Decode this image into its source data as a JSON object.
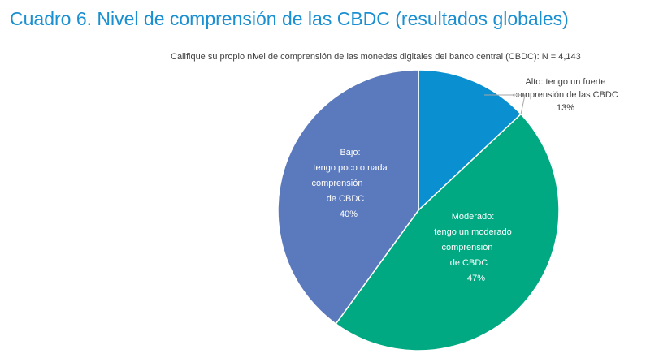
{
  "header": {
    "title": "Cuadro 6. Nivel de comprensión de las CBDC (resultados globales)",
    "subtitle": "Califique su propio nivel de comprensión de las monedas digitales del banco central (CBDC): N = 4,143"
  },
  "chart_data": {
    "type": "pie",
    "title": "Cuadro 6. Nivel de comprensión de las CBDC (resultados globales)",
    "subtitle": "Califique su propio nivel de comprensión de las monedas digitales del banco central (CBDC): N = 4,143",
    "slices": [
      {
        "name": "Alto",
        "value": 13,
        "color": "#0a90d0",
        "label_lines": [
          "Alto: tengo un fuerte",
          "comprensión de las CBDC",
          "13%"
        ],
        "label_color": "#404040"
      },
      {
        "name": "Moderado",
        "value": 47,
        "color": "#00a982",
        "label_lines": [
          "Moderado:",
          "tengo un moderado",
          "comprensión",
          "de CBDC",
          "47%"
        ],
        "label_color": "#ffffff"
      },
      {
        "name": "Bajo",
        "value": 40,
        "color": "#5b79bd",
        "label_lines": [
          "Bajo:",
          "tengo poco o nada",
          "comprensión",
          "de CBDC",
          "40%"
        ],
        "label_color": "#ffffff"
      }
    ]
  }
}
